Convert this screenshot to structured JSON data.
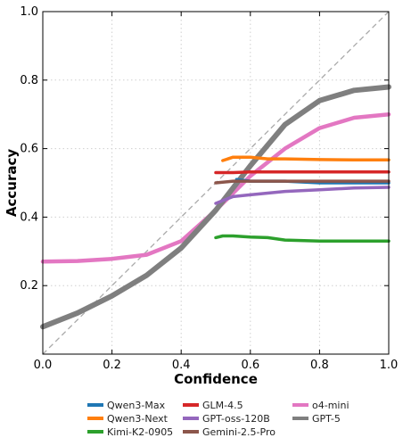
{
  "chart_data": {
    "type": "line",
    "title": "",
    "xlabel": "Confidence",
    "ylabel": "Accuracy",
    "xlim": [
      0.0,
      1.0
    ],
    "ylim": [
      0.0,
      1.0
    ],
    "xticks": [
      "0.0",
      "0.2",
      "0.4",
      "0.6",
      "0.8",
      "1.0"
    ],
    "yticks": [
      "0.2",
      "0.4",
      "0.6",
      "0.8",
      "1.0"
    ],
    "grid": true,
    "legend_position": "below",
    "reference_line": {
      "style": "dashed",
      "color": "#aaaaaa",
      "x": [
        0.0,
        1.0
      ],
      "y": [
        0.0,
        1.0
      ]
    },
    "series": [
      {
        "name": "Qwen3-Max",
        "color": "#1f77b4",
        "x": [
          0.56,
          0.6,
          0.7,
          0.8,
          0.9,
          1.0
        ],
        "y": [
          0.51,
          0.505,
          0.505,
          0.5,
          0.5,
          0.5
        ]
      },
      {
        "name": "Qwen3-Next",
        "color": "#ff7f0e",
        "x": [
          0.52,
          0.55,
          0.6,
          0.65,
          0.7,
          0.8,
          0.9,
          1.0
        ],
        "y": [
          0.565,
          0.575,
          0.575,
          0.57,
          0.57,
          0.568,
          0.567,
          0.567
        ]
      },
      {
        "name": "Kimi-K2-0905",
        "color": "#2ca02c",
        "x": [
          0.5,
          0.52,
          0.55,
          0.6,
          0.65,
          0.7,
          0.8,
          0.9,
          1.0
        ],
        "y": [
          0.34,
          0.345,
          0.345,
          0.342,
          0.34,
          0.333,
          0.33,
          0.33,
          0.33
        ]
      },
      {
        "name": "GLM-4.5",
        "color": "#d62728",
        "x": [
          0.5,
          0.55,
          0.6,
          0.7,
          0.8,
          0.9,
          1.0
        ],
        "y": [
          0.53,
          0.53,
          0.532,
          0.532,
          0.532,
          0.532,
          0.532
        ]
      },
      {
        "name": "GPT-oss-120B",
        "color": "#9467bd",
        "x": [
          0.5,
          0.55,
          0.6,
          0.65,
          0.7,
          0.8,
          0.9,
          1.0
        ],
        "y": [
          0.44,
          0.46,
          0.465,
          0.47,
          0.475,
          0.48,
          0.485,
          0.487
        ]
      },
      {
        "name": "Gemini-2.5-Pro",
        "color": "#8c564b",
        "x": [
          0.5,
          0.55,
          0.6,
          0.7,
          0.8,
          0.9,
          1.0
        ],
        "y": [
          0.5,
          0.505,
          0.505,
          0.505,
          0.505,
          0.505,
          0.505
        ]
      },
      {
        "name": "o4-mini",
        "color": "#e377c2",
        "x": [
          0.0,
          0.1,
          0.2,
          0.3,
          0.4,
          0.5,
          0.6,
          0.7,
          0.8,
          0.9,
          1.0
        ],
        "y": [
          0.27,
          0.272,
          0.278,
          0.29,
          0.33,
          0.42,
          0.52,
          0.6,
          0.66,
          0.69,
          0.7
        ]
      },
      {
        "name": "GPT-5",
        "color": "#7f7f7f",
        "x": [
          0.0,
          0.1,
          0.2,
          0.3,
          0.4,
          0.5,
          0.6,
          0.7,
          0.8,
          0.9,
          1.0
        ],
        "y": [
          0.08,
          0.12,
          0.17,
          0.23,
          0.31,
          0.42,
          0.55,
          0.67,
          0.74,
          0.77,
          0.78
        ]
      }
    ]
  }
}
